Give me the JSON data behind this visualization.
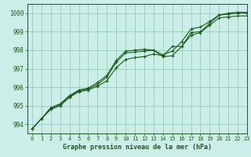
{
  "title": "Graphe pression niveau de la mer (hPa)",
  "background_color": "#cceee8",
  "grid_color": "#99ccbb",
  "line_color": "#1a5c1a",
  "xlim": [
    -0.5,
    23
  ],
  "ylim": [
    993.5,
    1000.5
  ],
  "yticks": [
    994,
    995,
    996,
    997,
    998,
    999,
    1000
  ],
  "xticks": [
    0,
    1,
    2,
    3,
    4,
    5,
    6,
    7,
    8,
    9,
    10,
    11,
    12,
    13,
    14,
    15,
    16,
    17,
    18,
    19,
    20,
    21,
    22,
    23
  ],
  "series": [
    [
      993.75,
      994.3,
      994.8,
      995.0,
      995.45,
      995.75,
      995.85,
      996.05,
      996.35,
      997.05,
      997.5,
      997.6,
      997.65,
      997.8,
      997.7,
      998.2,
      998.2,
      998.8,
      998.95,
      999.35,
      999.75,
      999.8,
      999.85,
      999.85
    ],
    [
      993.75,
      994.3,
      994.85,
      995.05,
      995.5,
      995.8,
      995.9,
      996.15,
      996.55,
      997.35,
      997.85,
      997.9,
      997.95,
      998.0,
      997.75,
      997.95,
      998.45,
      999.15,
      999.25,
      999.55,
      999.9,
      999.95,
      1000.0,
      1000.0
    ],
    [
      993.75,
      994.3,
      994.9,
      995.1,
      995.55,
      995.85,
      995.95,
      996.25,
      996.65,
      997.45,
      997.95,
      998.0,
      998.05,
      998.0,
      997.65,
      997.7,
      998.2,
      998.95,
      999.0,
      999.45,
      999.9,
      1000.0,
      1000.05,
      1000.05
    ]
  ]
}
